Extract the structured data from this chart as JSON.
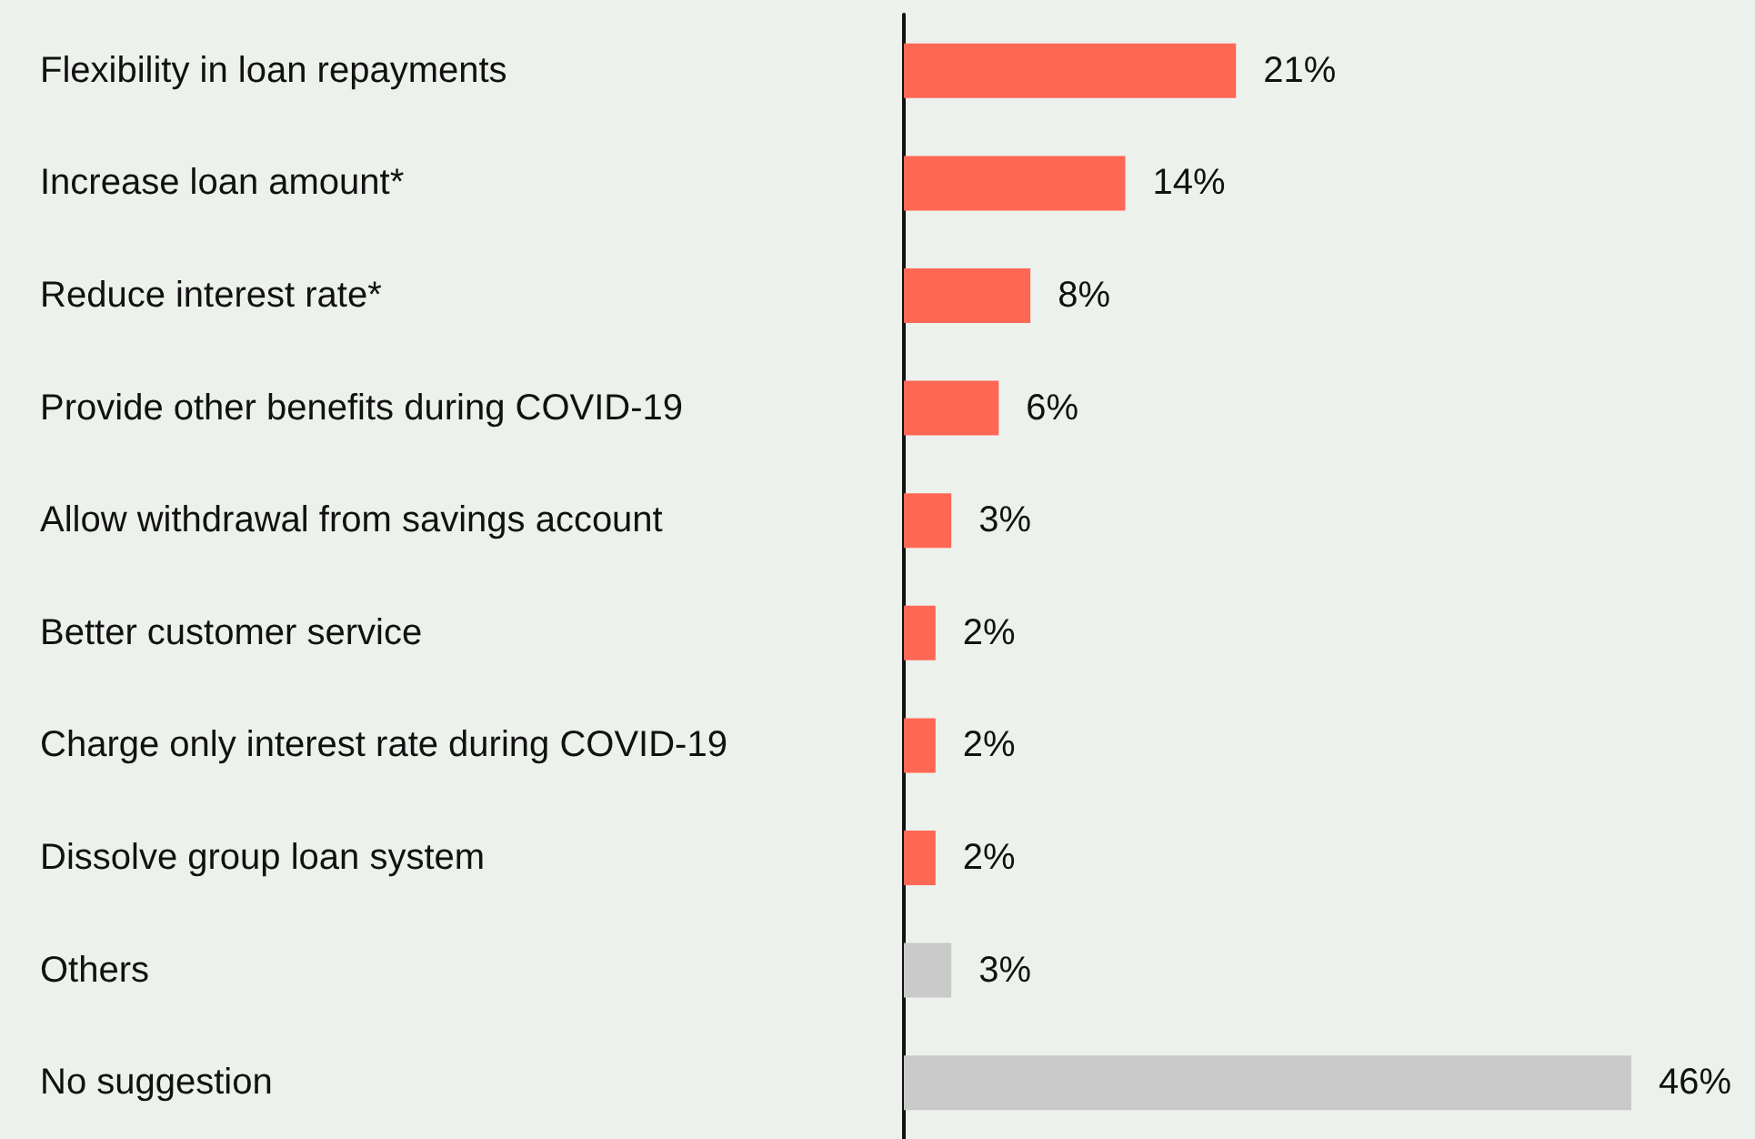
{
  "chart_data": {
    "type": "bar",
    "orientation": "horizontal",
    "categories": [
      "Flexibility in loan repayments",
      "Increase loan amount*",
      "Reduce interest rate*",
      "Provide other benefits during COVID-19",
      "Allow withdrawal from savings account",
      "Better customer service",
      "Charge only interest rate during COVID-19",
      "Dissolve group loan system",
      "Others",
      "No suggestion"
    ],
    "values": [
      21,
      14,
      8,
      6,
      3,
      2,
      2,
      2,
      3,
      46
    ],
    "colors": [
      "#ff6755",
      "#ff6755",
      "#ff6755",
      "#ff6755",
      "#ff6755",
      "#ff6755",
      "#ff6755",
      "#ff6755",
      "#c8c9c8",
      "#c8c9c8"
    ],
    "value_labels": [
      "21%",
      "14%",
      "8%",
      "6%",
      "3%",
      "2%",
      "2%",
      "2%",
      "3%",
      "46%"
    ]
  }
}
